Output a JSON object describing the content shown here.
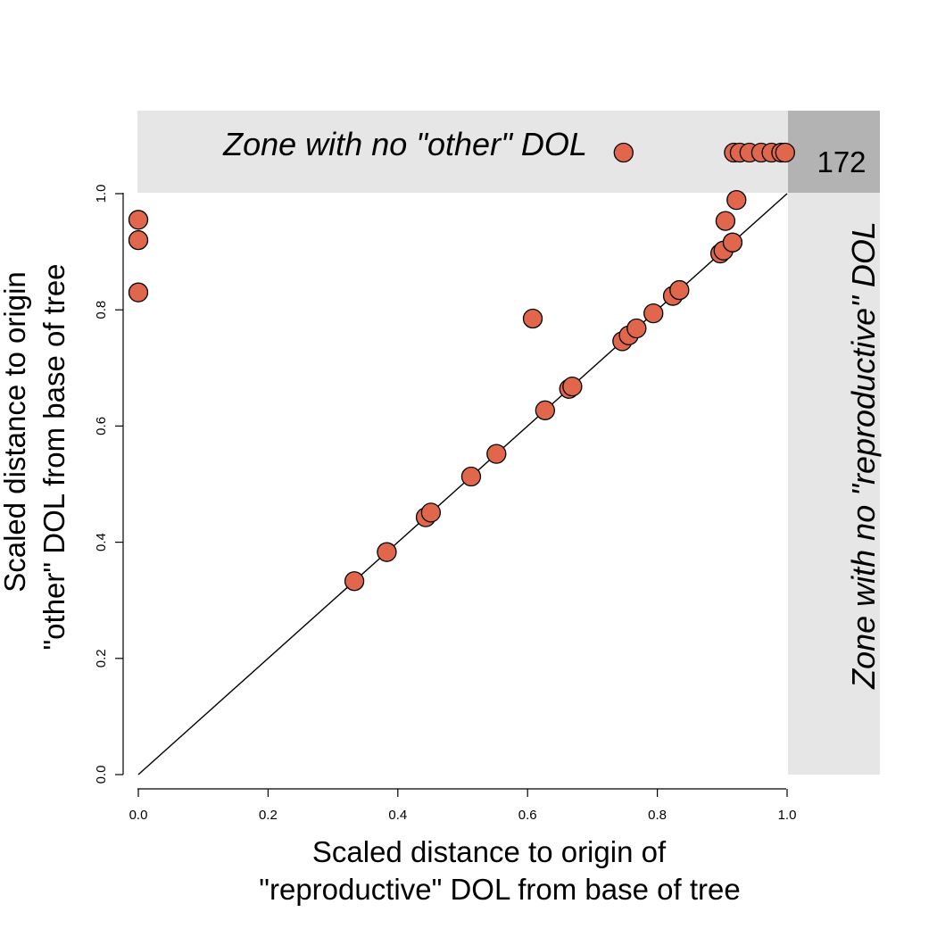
{
  "chart_data": {
    "type": "scatter",
    "title": "",
    "xlabel_lines": [
      "Scaled distance to origin of",
      "\"reproductive\" DOL from base of tree"
    ],
    "ylabel_lines": [
      "Scaled distance to origin",
      "\"other\" DOL from base of tree"
    ],
    "xlim": [
      0,
      1
    ],
    "ylim": [
      0,
      1
    ],
    "x_ticks": [
      "0.0",
      "0.2",
      "0.4",
      "0.6",
      "0.8",
      "1.0"
    ],
    "y_ticks": [
      "0.0",
      "0.2",
      "0.4",
      "0.6",
      "0.8",
      "1.0"
    ],
    "grid": false,
    "reference_line": "y = x",
    "zones": {
      "top_label": "Zone with no \"other\" DOL",
      "right_label": "Zone with no \"reproductive\" DOL",
      "corner_count": "172"
    },
    "colors": {
      "marker_fill": "#e0674b",
      "marker_edge": "#000000",
      "zone_band": "#e6e6e6",
      "corner_box": "#b3b3b3"
    },
    "points": [
      {
        "x": 0.0,
        "y": 0.955
      },
      {
        "x": 0.0,
        "y": 0.92
      },
      {
        "x": 0.0,
        "y": 0.83
      },
      {
        "x": 0.333,
        "y": 0.333
      },
      {
        "x": 0.383,
        "y": 0.383
      },
      {
        "x": 0.443,
        "y": 0.443
      },
      {
        "x": 0.451,
        "y": 0.451
      },
      {
        "x": 0.513,
        "y": 0.513
      },
      {
        "x": 0.552,
        "y": 0.552
      },
      {
        "x": 0.608,
        "y": 0.785
      },
      {
        "x": 0.627,
        "y": 0.627
      },
      {
        "x": 0.664,
        "y": 0.664
      },
      {
        "x": 0.669,
        "y": 0.668
      },
      {
        "x": 0.746,
        "y": 0.746
      },
      {
        "x": 0.756,
        "y": 0.756
      },
      {
        "x": 0.768,
        "y": 0.768
      },
      {
        "x": 0.794,
        "y": 0.794
      },
      {
        "x": 0.824,
        "y": 0.824
      },
      {
        "x": 0.834,
        "y": 0.834
      },
      {
        "x": 0.897,
        "y": 0.897
      },
      {
        "x": 0.902,
        "y": 0.902
      },
      {
        "x": 0.905,
        "y": 0.953
      },
      {
        "x": 0.916,
        "y": 0.916
      },
      {
        "x": 0.922,
        "y": 0.989
      }
    ],
    "no_other_points_x": [
      0.748,
      0.918,
      0.927,
      0.942,
      0.96,
      0.976,
      0.991,
      0.997
    ]
  }
}
